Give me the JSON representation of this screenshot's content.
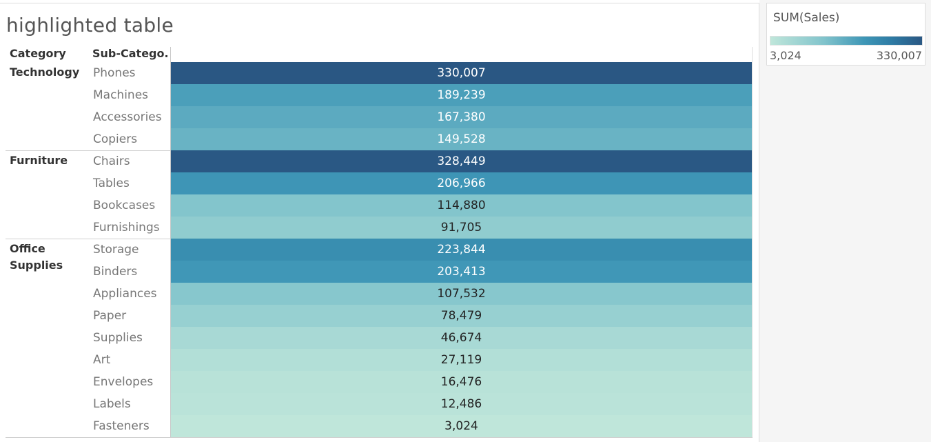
{
  "title": "highlighted table",
  "headers": {
    "category": "Category",
    "sub_category": "Sub-Catego.."
  },
  "legend": {
    "title": "SUM(Sales)",
    "min_label": "3,024",
    "max_label": "330,007",
    "min_value": 3024,
    "max_value": 330007,
    "color_low": "#bfe6da",
    "color_high": "#2a5783"
  },
  "chart_data": {
    "type": "table",
    "measure": "SUM(Sales)",
    "groups": [
      {
        "category": "Technology",
        "rows": [
          {
            "sub": "Phones",
            "value": 330007,
            "label": "330,007"
          },
          {
            "sub": "Machines",
            "value": 189239,
            "label": "189,239"
          },
          {
            "sub": "Accessories",
            "value": 167380,
            "label": "167,380"
          },
          {
            "sub": "Copiers",
            "value": 149528,
            "label": "149,528"
          }
        ]
      },
      {
        "category": "Furniture",
        "rows": [
          {
            "sub": "Chairs",
            "value": 328449,
            "label": "328,449"
          },
          {
            "sub": "Tables",
            "value": 206966,
            "label": "206,966"
          },
          {
            "sub": "Bookcases",
            "value": 114880,
            "label": "114,880"
          },
          {
            "sub": "Furnishings",
            "value": 91705,
            "label": "91,705"
          }
        ]
      },
      {
        "category": "Office Supplies",
        "rows": [
          {
            "sub": "Storage",
            "value": 223844,
            "label": "223,844"
          },
          {
            "sub": "Binders",
            "value": 203413,
            "label": "203,413"
          },
          {
            "sub": "Appliances",
            "value": 107532,
            "label": "107,532"
          },
          {
            "sub": "Paper",
            "value": 78479,
            "label": "78,479"
          },
          {
            "sub": "Supplies",
            "value": 46674,
            "label": "46,674"
          },
          {
            "sub": "Art",
            "value": 27119,
            "label": "27,119"
          },
          {
            "sub": "Envelopes",
            "value": 16476,
            "label": "16,476"
          },
          {
            "sub": "Labels",
            "value": 12486,
            "label": "12,486"
          },
          {
            "sub": "Fasteners",
            "value": 3024,
            "label": "3,024"
          }
        ]
      }
    ]
  }
}
